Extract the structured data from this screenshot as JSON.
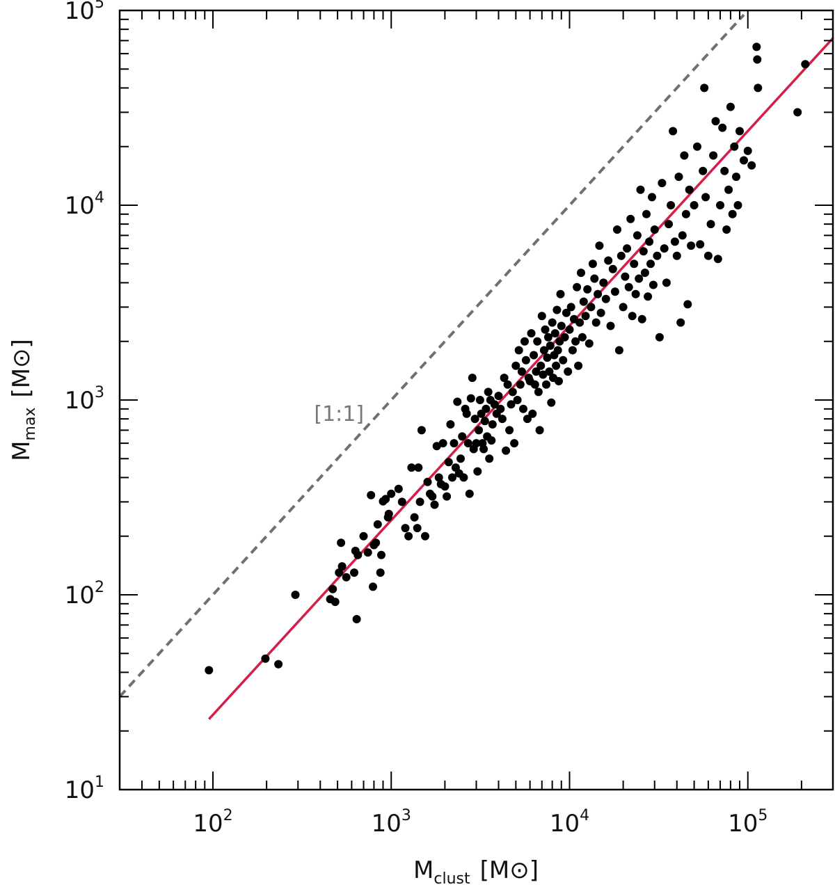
{
  "chart_data": {
    "type": "scatter",
    "xscale": "log",
    "yscale": "log",
    "xlim": [
      30,
      300000
    ],
    "ylim": [
      10,
      100000
    ],
    "xlabel": {
      "main": "M",
      "sub": "clust",
      "unit": "[M⊙]"
    },
    "ylabel": {
      "main": "M",
      "sub": "max",
      "unit": "[M⊙]"
    },
    "x_ticks": [
      {
        "value": 100,
        "base": "10",
        "exp": "2"
      },
      {
        "value": 1000,
        "base": "10",
        "exp": "3"
      },
      {
        "value": 10000,
        "base": "10",
        "exp": "4"
      },
      {
        "value": 100000,
        "base": "10",
        "exp": "5"
      }
    ],
    "y_ticks": [
      {
        "value": 10,
        "base": "10",
        "exp": "1"
      },
      {
        "value": 100,
        "base": "10",
        "exp": "2"
      },
      {
        "value": 1000,
        "base": "10",
        "exp": "3"
      },
      {
        "value": 10000,
        "base": "10",
        "exp": "4"
      },
      {
        "value": 100000,
        "base": "10",
        "exp": "5"
      }
    ],
    "lines": [
      {
        "style": "dashed",
        "color": "#707070",
        "points": [
          [
            30,
            30
          ],
          [
            95000,
            95000
          ]
        ]
      },
      {
        "style": "solid",
        "color": "#d31f47",
        "points": [
          [
            95,
            23
          ],
          [
            300000,
            72000
          ]
        ]
      }
    ],
    "annotation": {
      "text": "[1:1]",
      "x": 450,
      "y": 850,
      "color": "#777777"
    },
    "marker_color": "#000000",
    "points": [
      [
        95,
        41
      ],
      [
        197,
        47
      ],
      [
        233,
        44
      ],
      [
        290,
        100
      ],
      [
        455,
        95
      ],
      [
        470,
        107
      ],
      [
        485,
        92
      ],
      [
        510,
        130
      ],
      [
        523,
        185
      ],
      [
        530,
        140
      ],
      [
        560,
        123
      ],
      [
        620,
        130
      ],
      [
        630,
        168
      ],
      [
        640,
        75
      ],
      [
        650,
        160
      ],
      [
        700,
        200
      ],
      [
        740,
        165
      ],
      [
        770,
        325
      ],
      [
        790,
        110
      ],
      [
        800,
        180
      ],
      [
        820,
        185
      ],
      [
        840,
        230
      ],
      [
        870,
        130
      ],
      [
        880,
        160
      ],
      [
        900,
        302
      ],
      [
        930,
        310
      ],
      [
        960,
        250
      ],
      [
        970,
        260
      ],
      [
        1000,
        330
      ],
      [
        1100,
        350
      ],
      [
        1150,
        300
      ],
      [
        1200,
        220
      ],
      [
        1250,
        200
      ],
      [
        1300,
        450
      ],
      [
        1350,
        250
      ],
      [
        1400,
        220
      ],
      [
        1420,
        450
      ],
      [
        1450,
        300
      ],
      [
        1480,
        700
      ],
      [
        1550,
        200
      ],
      [
        1600,
        380
      ],
      [
        1650,
        330
      ],
      [
        1700,
        320
      ],
      [
        1750,
        290
      ],
      [
        1800,
        580
      ],
      [
        1850,
        400
      ],
      [
        1900,
        370
      ],
      [
        1950,
        600
      ],
      [
        2000,
        360
      ],
      [
        2050,
        320
      ],
      [
        2100,
        480
      ],
      [
        2150,
        750
      ],
      [
        2200,
        400
      ],
      [
        2250,
        600
      ],
      [
        2300,
        450
      ],
      [
        2350,
        980
      ],
      [
        2400,
        420
      ],
      [
        2450,
        500
      ],
      [
        2500,
        650
      ],
      [
        2550,
        400
      ],
      [
        2600,
        900
      ],
      [
        2650,
        850
      ],
      [
        2700,
        600
      ],
      [
        2750,
        330
      ],
      [
        2800,
        1020
      ],
      [
        2850,
        1300
      ],
      [
        2900,
        560
      ],
      [
        2950,
        800
      ],
      [
        3000,
        600
      ],
      [
        3050,
        430
      ],
      [
        3100,
        700
      ],
      [
        3150,
        1000
      ],
      [
        3200,
        850
      ],
      [
        3250,
        600
      ],
      [
        3300,
        560
      ],
      [
        3350,
        780
      ],
      [
        3400,
        900
      ],
      [
        3450,
        650
      ],
      [
        3500,
        1100
      ],
      [
        3550,
        500
      ],
      [
        3600,
        1000
      ],
      [
        3650,
        620
      ],
      [
        3700,
        750
      ],
      [
        3800,
        950
      ],
      [
        3900,
        850
      ],
      [
        4000,
        1050
      ],
      [
        4100,
        900
      ],
      [
        4200,
        800
      ],
      [
        4300,
        1300
      ],
      [
        4400,
        550
      ],
      [
        4500,
        1200
      ],
      [
        4600,
        700
      ],
      [
        4700,
        950
      ],
      [
        4800,
        1100
      ],
      [
        4900,
        600
      ],
      [
        5000,
        1500
      ],
      [
        5100,
        1000
      ],
      [
        5200,
        1800
      ],
      [
        5300,
        1200
      ],
      [
        5400,
        1400
      ],
      [
        5500,
        900
      ],
      [
        5600,
        2000
      ],
      [
        5700,
        1600
      ],
      [
        5800,
        800
      ],
      [
        5900,
        1300
      ],
      [
        6000,
        1250
      ],
      [
        6100,
        2200
      ],
      [
        6200,
        850
      ],
      [
        6300,
        1700
      ],
      [
        6400,
        1200
      ],
      [
        6500,
        1400
      ],
      [
        6600,
        2000
      ],
      [
        6700,
        1100
      ],
      [
        6800,
        700
      ],
      [
        6900,
        1500
      ],
      [
        7000,
        2700
      ],
      [
        7100,
        1350
      ],
      [
        7200,
        1800
      ],
      [
        7300,
        2300
      ],
      [
        7400,
        1200
      ],
      [
        7500,
        1650
      ],
      [
        7600,
        2100
      ],
      [
        7700,
        1400
      ],
      [
        7800,
        1900
      ],
      [
        7900,
        970
      ],
      [
        8000,
        2500
      ],
      [
        8100,
        1300
      ],
      [
        8200,
        1700
      ],
      [
        8300,
        2200
      ],
      [
        8400,
        1500
      ],
      [
        8500,
        2900
      ],
      [
        8600,
        1800
      ],
      [
        8700,
        1250
      ],
      [
        8800,
        2000
      ],
      [
        8900,
        3500
      ],
      [
        9000,
        2400
      ],
      [
        9200,
        1600
      ],
      [
        9400,
        2100
      ],
      [
        9600,
        2800
      ],
      [
        9800,
        1400
      ],
      [
        10000,
        2300
      ],
      [
        10200,
        3000
      ],
      [
        10400,
        1800
      ],
      [
        10600,
        2600
      ],
      [
        10800,
        2000
      ],
      [
        11000,
        3800
      ],
      [
        11200,
        1500
      ],
      [
        11400,
        2500
      ],
      [
        11600,
        4500
      ],
      [
        11800,
        2100
      ],
      [
        12000,
        3200
      ],
      [
        12300,
        2700
      ],
      [
        12600,
        3700
      ],
      [
        12900,
        1950
      ],
      [
        13200,
        3000
      ],
      [
        13500,
        5000
      ],
      [
        13800,
        4200
      ],
      [
        14100,
        2500
      ],
      [
        14400,
        3500
      ],
      [
        14700,
        6200
      ],
      [
        15000,
        2800
      ],
      [
        15500,
        4000
      ],
      [
        16000,
        3300
      ],
      [
        16500,
        5200
      ],
      [
        17000,
        2400
      ],
      [
        17500,
        4700
      ],
      [
        18000,
        3600
      ],
      [
        18500,
        7500
      ],
      [
        19000,
        1800
      ],
      [
        19500,
        5500
      ],
      [
        20000,
        3000
      ],
      [
        20500,
        4300
      ],
      [
        21000,
        6000
      ],
      [
        21500,
        3800
      ],
      [
        22000,
        8500
      ],
      [
        22500,
        2700
      ],
      [
        23000,
        5000
      ],
      [
        23500,
        3500
      ],
      [
        24000,
        7000
      ],
      [
        24500,
        4200
      ],
      [
        25000,
        12000
      ],
      [
        25500,
        2600
      ],
      [
        26000,
        5800
      ],
      [
        26500,
        4500
      ],
      [
        27000,
        9000
      ],
      [
        27500,
        3400
      ],
      [
        28000,
        6500
      ],
      [
        28500,
        5000
      ],
      [
        29000,
        11000
      ],
      [
        29500,
        3900
      ],
      [
        30000,
        7500
      ],
      [
        31000,
        5500
      ],
      [
        32000,
        2100
      ],
      [
        33000,
        13000
      ],
      [
        34000,
        6000
      ],
      [
        35000,
        4000
      ],
      [
        36000,
        8000
      ],
      [
        37000,
        10000
      ],
      [
        38000,
        24000
      ],
      [
        39000,
        6500
      ],
      [
        40000,
        5500
      ],
      [
        41000,
        14000
      ],
      [
        42000,
        2500
      ],
      [
        43000,
        7000
      ],
      [
        44000,
        18000
      ],
      [
        45000,
        9000
      ],
      [
        46000,
        3100
      ],
      [
        47000,
        12000
      ],
      [
        48000,
        6200
      ],
      [
        50000,
        10000
      ],
      [
        52000,
        20000
      ],
      [
        54000,
        6300
      ],
      [
        56000,
        15000
      ],
      [
        57000,
        40000
      ],
      [
        58000,
        11000
      ],
      [
        60000,
        5500
      ],
      [
        62000,
        8000
      ],
      [
        64000,
        18000
      ],
      [
        66000,
        27000
      ],
      [
        68000,
        5300
      ],
      [
        70000,
        10000
      ],
      [
        72000,
        25000
      ],
      [
        74000,
        15000
      ],
      [
        76000,
        7500
      ],
      [
        78000,
        12000
      ],
      [
        80000,
        32000
      ],
      [
        82000,
        9000
      ],
      [
        84000,
        20000
      ],
      [
        86000,
        14000
      ],
      [
        88000,
        10000
      ],
      [
        90000,
        24000
      ],
      [
        95000,
        17000
      ],
      [
        100000,
        19000
      ],
      [
        105000,
        16000
      ],
      [
        112000,
        65000
      ],
      [
        113000,
        56000
      ],
      [
        114000,
        40000
      ],
      [
        190000,
        30000
      ],
      [
        210000,
        53000
      ]
    ]
  }
}
